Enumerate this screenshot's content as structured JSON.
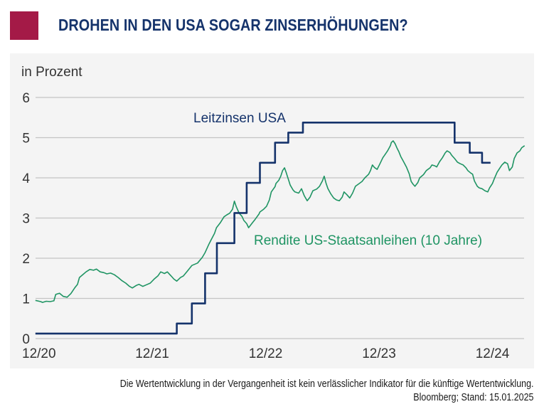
{
  "header": {
    "title": "DROHEN IN DEN USA SOGAR ZINSERHÖHUNGEN?",
    "title_color": "#15336b",
    "brand_color": "#a41a47"
  },
  "footer": {
    "disclaimer": "Die Wertentwicklung in der Vergangenheit ist kein verlässlicher Indikator für die künftige Wertentwicklung.",
    "source": "Bloomberg; Stand: 15.01.2025"
  },
  "chart_data": {
    "type": "line",
    "title": "",
    "ylabel": "in Prozent",
    "xlabel": "",
    "ylim": [
      0,
      6
    ],
    "yticks": [
      "0",
      "1",
      "2",
      "3",
      "4",
      "5",
      "6"
    ],
    "x_unit": "months since 12/2020",
    "xlim": [
      -0.35,
      51.4
    ],
    "xticks": [
      {
        "t": 0,
        "label": "12/20"
      },
      {
        "t": 12,
        "label": "12/21"
      },
      {
        "t": 24,
        "label": "12/22"
      },
      {
        "t": 36,
        "label": "12/23"
      },
      {
        "t": 48,
        "label": "12/24"
      }
    ],
    "grid": true,
    "legend": "inline labels",
    "series": [
      {
        "name": "Leitzinsen USA",
        "color": "#15336b",
        "step": true,
        "points": [
          [
            -0.35,
            0.125
          ],
          [
            14.6,
            0.125
          ],
          [
            14.6,
            0.375
          ],
          [
            16.2,
            0.375
          ],
          [
            16.2,
            0.875
          ],
          [
            17.6,
            0.875
          ],
          [
            17.6,
            1.625
          ],
          [
            18.85,
            1.625
          ],
          [
            18.85,
            2.375
          ],
          [
            20.7,
            2.375
          ],
          [
            20.7,
            3.125
          ],
          [
            22.0,
            3.125
          ],
          [
            22.0,
            3.875
          ],
          [
            23.4,
            3.875
          ],
          [
            23.4,
            4.375
          ],
          [
            25.0,
            4.375
          ],
          [
            25.0,
            4.875
          ],
          [
            26.4,
            4.875
          ],
          [
            26.4,
            5.125
          ],
          [
            27.95,
            5.125
          ],
          [
            27.95,
            5.375
          ],
          [
            44.0,
            5.375
          ],
          [
            44.0,
            4.875
          ],
          [
            45.6,
            4.875
          ],
          [
            45.6,
            4.625
          ],
          [
            46.9,
            4.625
          ],
          [
            46.9,
            4.375
          ],
          [
            47.8,
            4.375
          ]
        ]
      },
      {
        "name": "Rendite US-Staatsanleihen (10 Jahre)",
        "color": "#1f9463",
        "step": false,
        "points": [
          [
            -0.35,
            0.95
          ],
          [
            0.2,
            0.92
          ],
          [
            0.4,
            0.9
          ],
          [
            0.8,
            0.93
          ],
          [
            1.2,
            0.92
          ],
          [
            1.6,
            0.94
          ],
          [
            1.8,
            1.1
          ],
          [
            2.2,
            1.13
          ],
          [
            2.6,
            1.05
          ],
          [
            3.0,
            1.03
          ],
          [
            3.4,
            1.12
          ],
          [
            3.8,
            1.26
          ],
          [
            4.1,
            1.35
          ],
          [
            4.3,
            1.52
          ],
          [
            4.7,
            1.6
          ],
          [
            5.0,
            1.66
          ],
          [
            5.4,
            1.72
          ],
          [
            5.8,
            1.7
          ],
          [
            6.1,
            1.73
          ],
          [
            6.5,
            1.66
          ],
          [
            6.9,
            1.64
          ],
          [
            7.2,
            1.61
          ],
          [
            7.6,
            1.63
          ],
          [
            8.0,
            1.59
          ],
          [
            8.4,
            1.52
          ],
          [
            8.8,
            1.44
          ],
          [
            9.2,
            1.38
          ],
          [
            9.6,
            1.3
          ],
          [
            9.9,
            1.26
          ],
          [
            10.3,
            1.32
          ],
          [
            10.6,
            1.35
          ],
          [
            11.0,
            1.3
          ],
          [
            11.4,
            1.34
          ],
          [
            11.8,
            1.38
          ],
          [
            12.2,
            1.48
          ],
          [
            12.6,
            1.56
          ],
          [
            12.9,
            1.66
          ],
          [
            13.3,
            1.62
          ],
          [
            13.6,
            1.66
          ],
          [
            14.0,
            1.56
          ],
          [
            14.3,
            1.48
          ],
          [
            14.6,
            1.43
          ],
          [
            15.0,
            1.52
          ],
          [
            15.3,
            1.56
          ],
          [
            15.8,
            1.7
          ],
          [
            16.2,
            1.82
          ],
          [
            16.8,
            1.88
          ],
          [
            17.3,
            2.02
          ],
          [
            17.6,
            2.14
          ],
          [
            18.0,
            2.35
          ],
          [
            18.2,
            2.44
          ],
          [
            18.6,
            2.62
          ],
          [
            18.8,
            2.76
          ],
          [
            19.2,
            2.88
          ],
          [
            19.6,
            3.03
          ],
          [
            19.9,
            3.08
          ],
          [
            20.2,
            3.12
          ],
          [
            20.5,
            3.22
          ],
          [
            20.7,
            3.42
          ],
          [
            20.9,
            3.28
          ],
          [
            21.2,
            3.12
          ],
          [
            21.5,
            3.04
          ],
          [
            21.7,
            2.94
          ],
          [
            22.0,
            2.86
          ],
          [
            22.2,
            2.76
          ],
          [
            22.6,
            2.88
          ],
          [
            22.9,
            2.97
          ],
          [
            23.3,
            3.1
          ],
          [
            23.4,
            3.15
          ],
          [
            23.8,
            3.22
          ],
          [
            24.1,
            3.29
          ],
          [
            24.4,
            3.45
          ],
          [
            24.6,
            3.65
          ],
          [
            25.0,
            3.78
          ],
          [
            25.1,
            3.86
          ],
          [
            25.4,
            3.94
          ],
          [
            25.6,
            4.04
          ],
          [
            25.8,
            4.18
          ],
          [
            26.0,
            4.25
          ],
          [
            26.2,
            4.12
          ],
          [
            26.3,
            4.04
          ],
          [
            26.5,
            3.9
          ],
          [
            26.6,
            3.82
          ],
          [
            26.9,
            3.7
          ],
          [
            27.1,
            3.65
          ],
          [
            27.5,
            3.62
          ],
          [
            27.8,
            3.73
          ],
          [
            28.1,
            3.55
          ],
          [
            28.4,
            3.43
          ],
          [
            28.7,
            3.52
          ],
          [
            29.0,
            3.68
          ],
          [
            29.4,
            3.72
          ],
          [
            29.7,
            3.79
          ],
          [
            30.0,
            3.92
          ],
          [
            30.2,
            4.04
          ],
          [
            30.4,
            3.86
          ],
          [
            30.6,
            3.73
          ],
          [
            30.9,
            3.6
          ],
          [
            31.2,
            3.5
          ],
          [
            31.5,
            3.45
          ],
          [
            31.8,
            3.43
          ],
          [
            32.1,
            3.52
          ],
          [
            32.3,
            3.65
          ],
          [
            32.6,
            3.58
          ],
          [
            32.9,
            3.5
          ],
          [
            33.2,
            3.62
          ],
          [
            33.5,
            3.79
          ],
          [
            33.8,
            3.84
          ],
          [
            34.2,
            3.91
          ],
          [
            34.5,
            4.0
          ],
          [
            34.9,
            4.09
          ],
          [
            35.1,
            4.18
          ],
          [
            35.3,
            4.32
          ],
          [
            35.5,
            4.26
          ],
          [
            35.8,
            4.21
          ],
          [
            36.1,
            4.35
          ],
          [
            36.4,
            4.5
          ],
          [
            36.7,
            4.6
          ],
          [
            36.9,
            4.67
          ],
          [
            37.2,
            4.8
          ],
          [
            37.3,
            4.88
          ],
          [
            37.5,
            4.92
          ],
          [
            37.7,
            4.85
          ],
          [
            37.9,
            4.74
          ],
          [
            38.1,
            4.65
          ],
          [
            38.3,
            4.53
          ],
          [
            38.6,
            4.4
          ],
          [
            38.9,
            4.27
          ],
          [
            39.2,
            4.1
          ],
          [
            39.4,
            3.91
          ],
          [
            39.6,
            3.84
          ],
          [
            39.8,
            3.79
          ],
          [
            40.1,
            3.88
          ],
          [
            40.3,
            4.0
          ],
          [
            40.7,
            4.08
          ],
          [
            41.0,
            4.18
          ],
          [
            41.4,
            4.25
          ],
          [
            41.6,
            4.32
          ],
          [
            41.9,
            4.3
          ],
          [
            42.1,
            4.27
          ],
          [
            42.4,
            4.4
          ],
          [
            42.7,
            4.5
          ],
          [
            43.0,
            4.62
          ],
          [
            43.2,
            4.67
          ],
          [
            43.5,
            4.63
          ],
          [
            43.7,
            4.56
          ],
          [
            44.0,
            4.48
          ],
          [
            44.3,
            4.39
          ],
          [
            44.6,
            4.35
          ],
          [
            44.9,
            4.32
          ],
          [
            45.2,
            4.25
          ],
          [
            45.4,
            4.18
          ],
          [
            45.7,
            4.12
          ],
          [
            45.9,
            4.09
          ],
          [
            46.1,
            3.92
          ],
          [
            46.4,
            3.79
          ],
          [
            46.6,
            3.75
          ],
          [
            46.9,
            3.73
          ],
          [
            47.2,
            3.68
          ],
          [
            47.5,
            3.65
          ],
          [
            47.7,
            3.75
          ],
          [
            48.0,
            3.86
          ],
          [
            48.2,
            3.98
          ],
          [
            48.5,
            4.14
          ],
          [
            48.8,
            4.25
          ],
          [
            49.0,
            4.32
          ],
          [
            49.3,
            4.39
          ],
          [
            49.6,
            4.35
          ],
          [
            49.8,
            4.18
          ],
          [
            50.1,
            4.27
          ],
          [
            50.3,
            4.48
          ],
          [
            50.6,
            4.62
          ],
          [
            50.9,
            4.67
          ],
          [
            51.1,
            4.75
          ],
          [
            51.4,
            4.8
          ]
        ]
      }
    ],
    "annotations": [
      {
        "text": "Leitzinsen USA",
        "series": 0
      },
      {
        "text": "Rendite US-Staatsanleihen (10 Jahre)",
        "series": 1
      }
    ]
  }
}
